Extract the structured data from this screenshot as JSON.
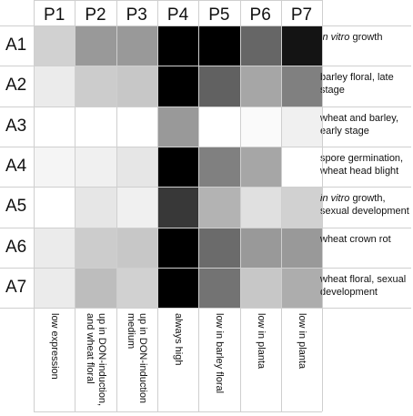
{
  "chart_data": {
    "type": "heatmap",
    "columns": [
      "P1",
      "P2",
      "P3",
      "P4",
      "P5",
      "P6",
      "P7"
    ],
    "rows": [
      "A1",
      "A2",
      "A3",
      "A4",
      "A5",
      "A6",
      "A7"
    ],
    "color_scale": {
      "low": "#ffffff",
      "high": "#000000"
    },
    "values": [
      [
        0.18,
        0.4,
        0.4,
        1.0,
        1.0,
        0.6,
        0.92
      ],
      [
        0.08,
        0.2,
        0.22,
        1.0,
        0.62,
        0.35,
        0.5
      ],
      [
        0.0,
        0.0,
        0.0,
        0.4,
        0.0,
        0.02,
        0.06
      ],
      [
        0.04,
        0.06,
        0.1,
        1.0,
        0.5,
        0.35,
        0.0
      ],
      [
        0.0,
        0.1,
        0.06,
        0.78,
        0.3,
        0.12,
        0.18
      ],
      [
        0.08,
        0.2,
        0.22,
        1.0,
        0.58,
        0.4,
        0.4
      ],
      [
        0.08,
        0.26,
        0.18,
        1.0,
        0.55,
        0.22,
        0.32
      ]
    ],
    "row_descriptions": [
      {
        "italic": "in vitro",
        "text": " growth"
      },
      {
        "italic": "",
        "text": "barley floral, late stage"
      },
      {
        "italic": "",
        "text": "wheat and barley, early stage"
      },
      {
        "italic": "",
        "text": "spore germination, wheat head blight"
      },
      {
        "italic": "in vitro",
        "text": " growth, sexual development"
      },
      {
        "italic": "",
        "text": "wheat crown rot"
      },
      {
        "italic": "",
        "text": "wheat floral, sexual development"
      }
    ],
    "column_descriptions": [
      [
        "low expression"
      ],
      [
        "up in DON-induction,",
        "and wheat floral"
      ],
      [
        "up in DON-induction",
        "medium"
      ],
      [
        "always high"
      ],
      [
        "low in barley floral"
      ],
      [
        "low in planta"
      ],
      [
        "low in planta"
      ]
    ],
    "grid": true
  }
}
